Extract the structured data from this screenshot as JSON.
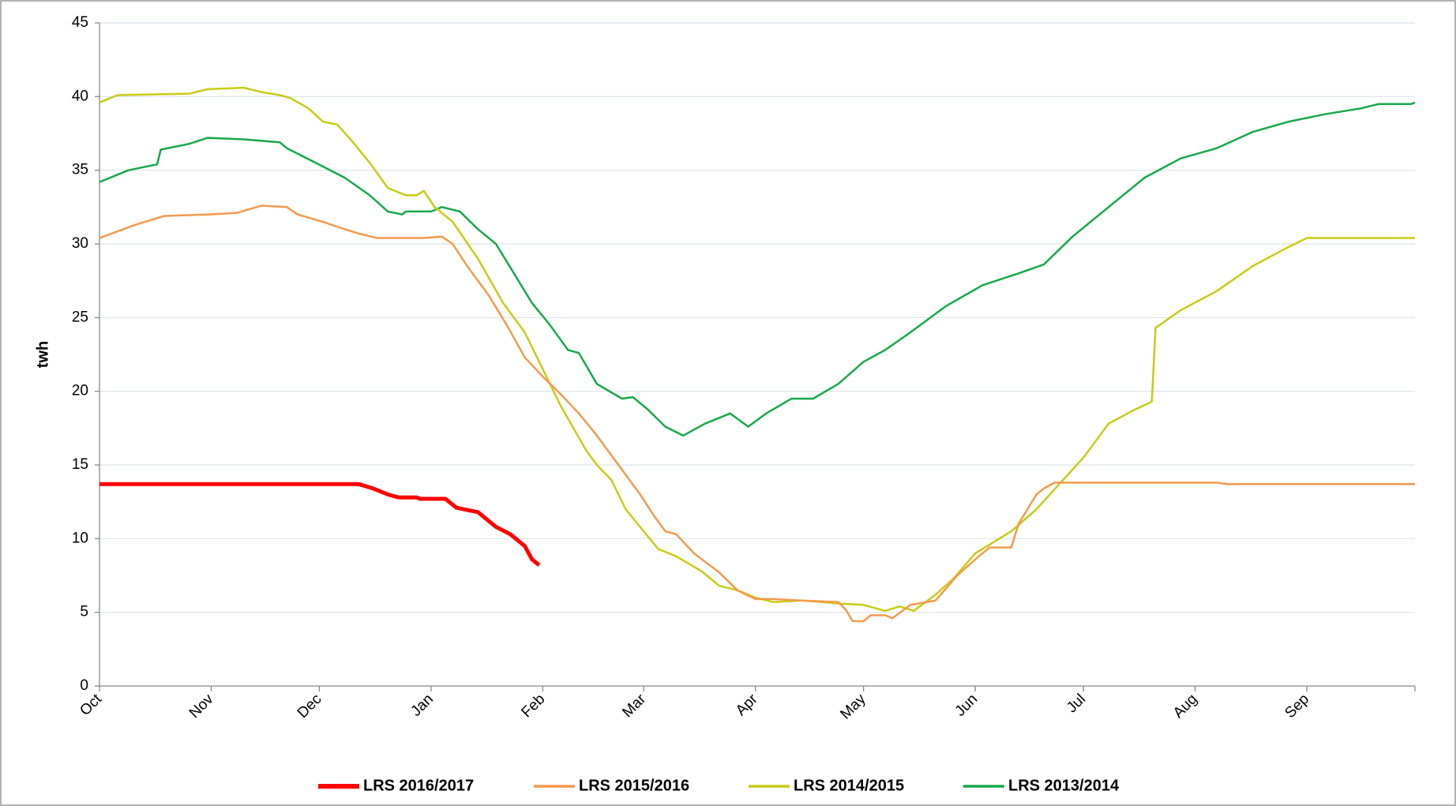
{
  "chart_data": {
    "type": "line",
    "y_label": "twh",
    "xlim": [
      0,
      365
    ],
    "xticks": [
      {
        "value": 0,
        "label": "Oct"
      },
      {
        "value": 31,
        "label": "Nov"
      },
      {
        "value": 61,
        "label": "Dec"
      },
      {
        "value": 92,
        "label": "Jan"
      },
      {
        "value": 123,
        "label": "Feb"
      },
      {
        "value": 151,
        "label": "Mar"
      },
      {
        "value": 182,
        "label": "Apr"
      },
      {
        "value": 212,
        "label": "May"
      },
      {
        "value": 243,
        "label": "Jun"
      },
      {
        "value": 273,
        "label": "Jul"
      },
      {
        "value": 304,
        "label": "Aug"
      },
      {
        "value": 335,
        "label": "Sep"
      }
    ],
    "ylim": [
      0,
      45
    ],
    "yticks": [
      0,
      5,
      10,
      15,
      20,
      25,
      30,
      35,
      40,
      45
    ],
    "grid": true,
    "legend": "bottom",
    "series": [
      {
        "name": "LRS 2016/2017",
        "color": "#ff0000",
        "width": 5,
        "x": [
          0,
          72,
          76,
          80,
          83,
          88,
          89,
          96,
          99,
          103,
          105,
          110,
          114,
          118,
          120,
          122
        ],
        "values": [
          13.7,
          13.7,
          13.4,
          13.0,
          12.8,
          12.8,
          12.7,
          12.7,
          12.1,
          11.9,
          11.8,
          10.8,
          10.3,
          9.5,
          8.6,
          8.2
        ]
      },
      {
        "name": "LRS 2015/2016",
        "color": "#f39a4e",
        "width": 2.5,
        "x": [
          0,
          10,
          18,
          30,
          38,
          45,
          52,
          55,
          62,
          68,
          72,
          77,
          90,
          95,
          98,
          102,
          108,
          113,
          118,
          123,
          128,
          133,
          138,
          144,
          150,
          154,
          157,
          160,
          165,
          172,
          177,
          182,
          187,
          195,
          205,
          207,
          209,
          212,
          214,
          218,
          220,
          225,
          232,
          238,
          244,
          247,
          253,
          255,
          260,
          262,
          265,
          310,
          313,
          365
        ],
        "values": [
          30.4,
          31.3,
          31.9,
          32.0,
          32.1,
          32.6,
          32.5,
          32.0,
          31.5,
          31.0,
          30.7,
          30.4,
          30.4,
          30.5,
          30.0,
          28.5,
          26.5,
          24.5,
          22.3,
          21.0,
          19.8,
          18.5,
          17.0,
          15.0,
          13.0,
          11.5,
          10.5,
          10.3,
          9.0,
          7.7,
          6.5,
          5.9,
          5.9,
          5.8,
          5.7,
          5.2,
          4.4,
          4.4,
          4.8,
          4.8,
          4.6,
          5.5,
          5.8,
          7.5,
          8.8,
          9.4,
          9.4,
          11.0,
          13.0,
          13.4,
          13.8,
          13.8,
          13.7,
          13.7
        ]
      },
      {
        "name": "LRS 2014/2015",
        "color": "#c8cc14",
        "width": 2.5,
        "x": [
          0,
          5,
          25,
          30,
          40,
          45,
          50,
          53,
          58,
          62,
          66,
          70,
          75,
          80,
          85,
          88,
          90,
          93,
          98,
          105,
          112,
          118,
          122,
          128,
          135,
          138,
          142,
          146,
          151,
          155,
          160,
          167,
          172,
          177,
          182,
          187,
          195,
          205,
          212,
          218,
          222,
          226,
          227,
          232,
          237,
          243,
          253,
          260,
          273,
          280,
          286,
          292,
          293,
          300,
          310,
          320,
          330,
          335,
          365
        ],
        "values": [
          39.6,
          40.1,
          40.2,
          40.5,
          40.6,
          40.3,
          40.1,
          39.9,
          39.2,
          38.3,
          38.1,
          37.0,
          35.5,
          33.8,
          33.3,
          33.3,
          33.6,
          32.5,
          31.5,
          29.0,
          26.0,
          24.0,
          22.0,
          19.0,
          16.0,
          15.0,
          14.0,
          12.0,
          10.5,
          9.3,
          8.8,
          7.8,
          6.8,
          6.5,
          6.0,
          5.7,
          5.8,
          5.6,
          5.5,
          5.1,
          5.4,
          5.1,
          5.3,
          6.2,
          7.3,
          9.0,
          10.5,
          12.0,
          15.5,
          17.8,
          18.6,
          19.3,
          24.3,
          25.5,
          26.8,
          28.5,
          29.8,
          30.4,
          30.4
        ]
      },
      {
        "name": "LRS 2013/2014",
        "color": "#17a84a",
        "width": 2.5,
        "x": [
          0,
          8,
          16,
          17,
          25,
          30,
          40,
          50,
          52,
          60,
          68,
          75,
          80,
          84,
          85,
          92,
          95,
          100,
          105,
          110,
          115,
          120,
          125,
          130,
          133,
          138,
          145,
          148,
          152,
          157,
          162,
          168,
          175,
          180,
          185,
          192,
          198,
          205,
          212,
          218,
          225,
          235,
          245,
          255,
          262,
          270,
          280,
          290,
          300,
          310,
          320,
          330,
          340,
          350,
          355,
          364,
          365
        ],
        "values": [
          34.2,
          35.0,
          35.4,
          36.4,
          36.8,
          37.2,
          37.1,
          36.9,
          36.5,
          35.5,
          34.5,
          33.3,
          32.2,
          32.0,
          32.2,
          32.2,
          32.5,
          32.2,
          31.0,
          30.0,
          28.0,
          26.0,
          24.5,
          22.8,
          22.6,
          20.5,
          19.5,
          19.6,
          18.8,
          17.6,
          17.0,
          17.8,
          18.5,
          17.6,
          18.5,
          19.5,
          19.5,
          20.5,
          22.0,
          22.8,
          24.0,
          25.8,
          27.2,
          28.0,
          28.6,
          30.5,
          32.5,
          34.5,
          35.8,
          36.5,
          37.6,
          38.3,
          38.8,
          39.2,
          39.5,
          39.5,
          39.6
        ]
      }
    ]
  }
}
